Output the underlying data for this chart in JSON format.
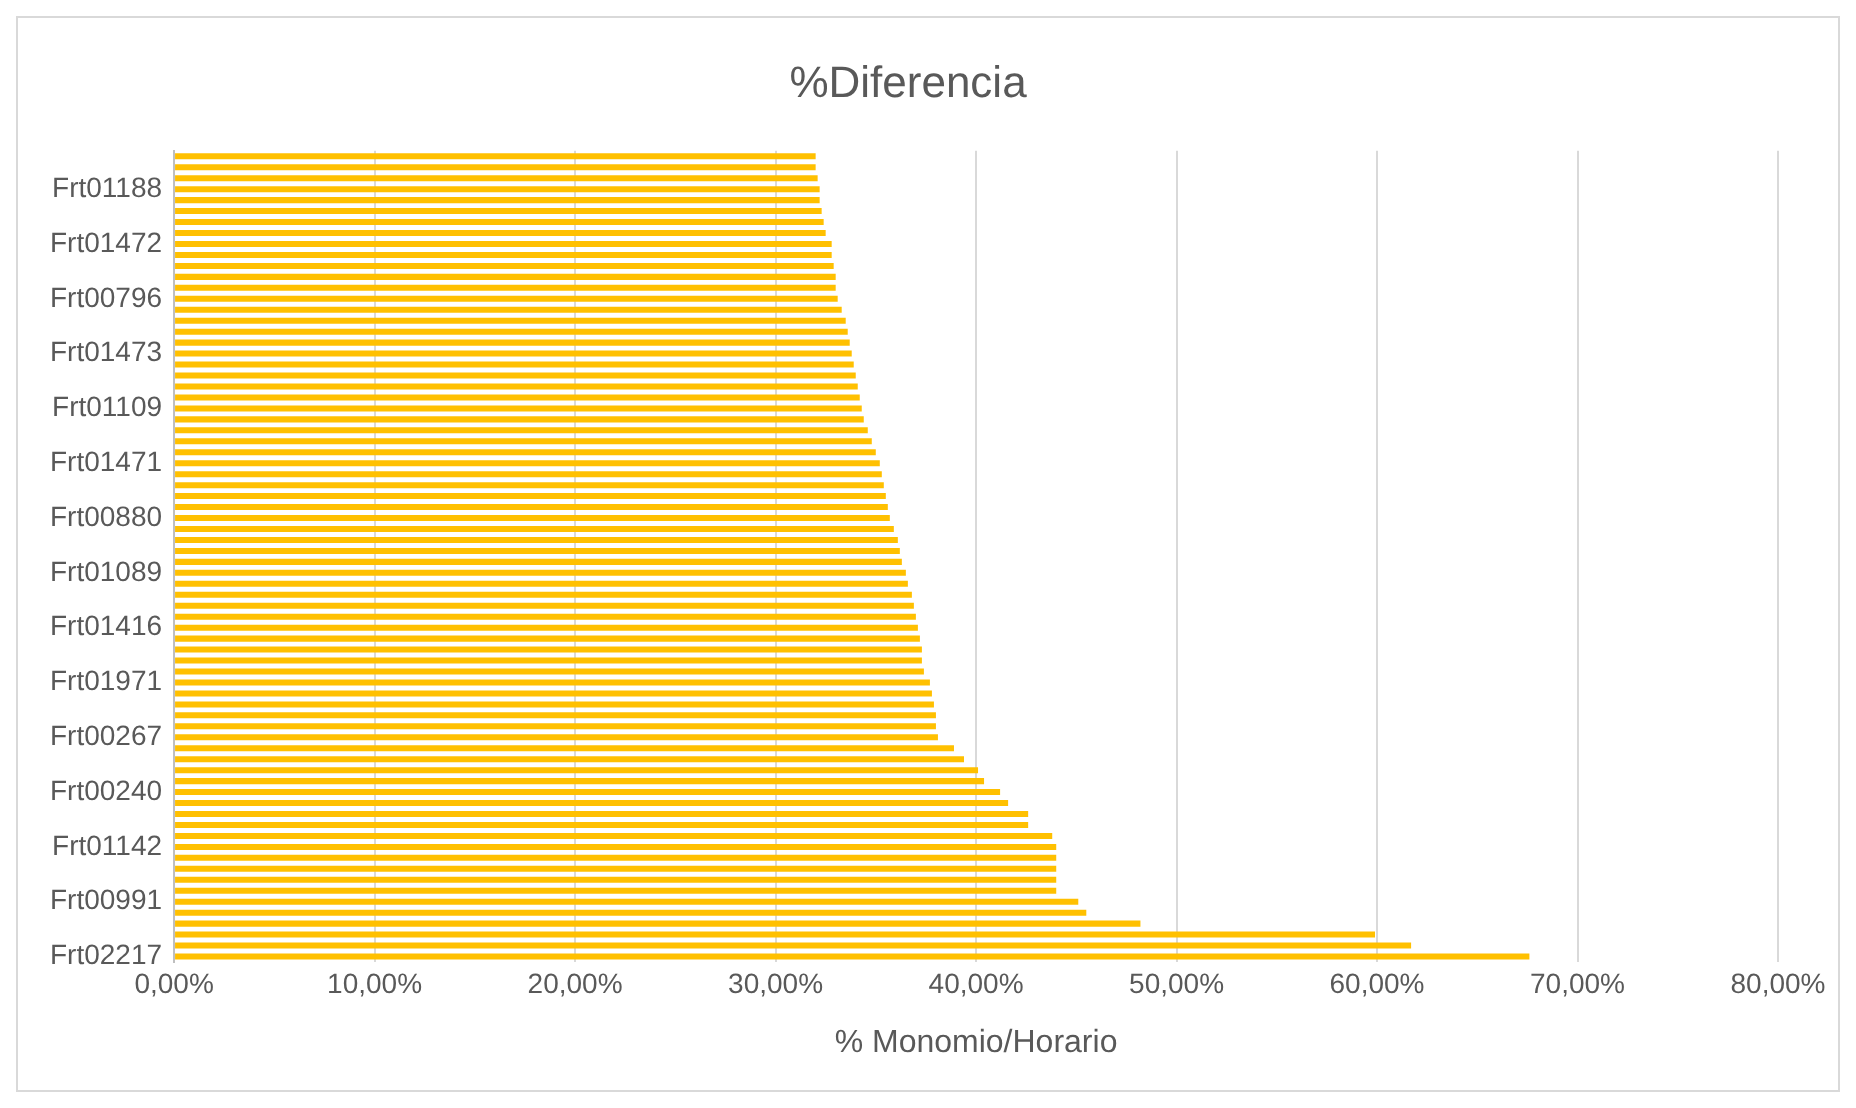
{
  "chart_data": {
    "type": "bar",
    "orientation": "horizontal",
    "title": "%Diferencia",
    "xlabel": "% Monomio/Horario",
    "categories": [
      null,
      null,
      null,
      "Frt01188",
      null,
      null,
      null,
      null,
      "Frt01472",
      null,
      null,
      null,
      null,
      "Frt00796",
      null,
      null,
      null,
      null,
      "Frt01473",
      null,
      null,
      null,
      null,
      "Frt01109",
      null,
      null,
      null,
      null,
      "Frt01471",
      null,
      null,
      null,
      null,
      "Frt00880",
      null,
      null,
      null,
      null,
      "Frt01089",
      null,
      null,
      null,
      null,
      "Frt01416",
      null,
      null,
      null,
      null,
      "Frt01971",
      null,
      null,
      null,
      null,
      "Frt00267",
      null,
      null,
      null,
      null,
      "Frt00240",
      null,
      null,
      null,
      null,
      "Frt01142",
      null,
      null,
      null,
      null,
      "Frt00991",
      null,
      null,
      null,
      null,
      "Frt02217"
    ],
    "values": [
      32.0,
      32.0,
      32.1,
      32.2,
      32.2,
      32.3,
      32.4,
      32.5,
      32.8,
      32.8,
      32.9,
      33.0,
      33.0,
      33.1,
      33.3,
      33.5,
      33.6,
      33.7,
      33.8,
      33.9,
      34.0,
      34.1,
      34.2,
      34.3,
      34.4,
      34.6,
      34.8,
      35.0,
      35.2,
      35.3,
      35.4,
      35.5,
      35.6,
      35.7,
      35.9,
      36.1,
      36.2,
      36.3,
      36.5,
      36.6,
      36.8,
      36.9,
      37.0,
      37.1,
      37.2,
      37.3,
      37.3,
      37.4,
      37.7,
      37.8,
      37.9,
      38.0,
      38.0,
      38.1,
      38.9,
      39.4,
      40.1,
      40.4,
      41.2,
      41.6,
      42.6,
      42.6,
      43.8,
      44.0,
      44.0,
      44.0,
      44.0,
      44.0,
      45.1,
      45.5,
      48.2,
      59.9,
      61.7,
      67.6
    ],
    "color": "#ffc000",
    "xlim": [
      0,
      80
    ],
    "xticks": [
      {
        "value": 0,
        "label": "0,00%"
      },
      {
        "value": 10,
        "label": "10,00%"
      },
      {
        "value": 20,
        "label": "20,00%"
      },
      {
        "value": 30,
        "label": "30,00%"
      },
      {
        "value": 40,
        "label": "40,00%"
      },
      {
        "value": 50,
        "label": "50,00%"
      },
      {
        "value": 60,
        "label": "60,00%"
      },
      {
        "value": 70,
        "label": "70,00%"
      },
      {
        "value": 80,
        "label": "80,00%"
      }
    ],
    "grid": "x",
    "legend": false
  }
}
